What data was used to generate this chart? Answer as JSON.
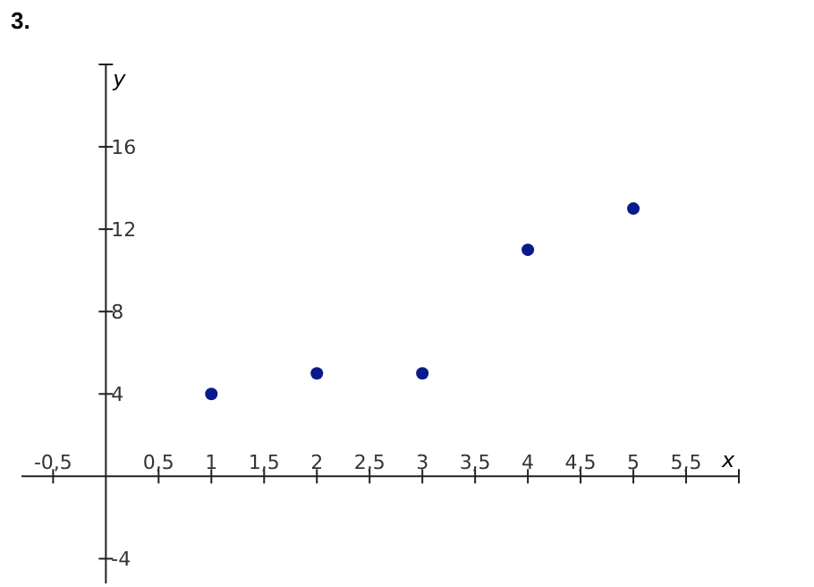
{
  "chart_data": {
    "type": "scatter",
    "title": "3.",
    "xlabel": "x",
    "ylabel": "y",
    "x": [
      1,
      2,
      3,
      4,
      5
    ],
    "series": [
      {
        "color": "#0a1a8c",
        "values": [
          4,
          5,
          5,
          11,
          13
        ]
      }
    ],
    "marker": "circle",
    "grid": false,
    "xlim": [
      -0.8,
      6
    ],
    "ylim": [
      -5.2,
      20
    ],
    "xticks": [
      {
        "value": -0.5,
        "label": "-0,5"
      },
      {
        "value": 0.5,
        "label": "0,5"
      },
      1,
      {
        "value": 1.5,
        "label": "1,5"
      },
      2,
      {
        "value": 2.5,
        "label": "2,5"
      },
      3,
      {
        "value": 3.5,
        "label": "3,5"
      },
      4,
      {
        "value": 4.5,
        "label": "4,5"
      },
      5,
      {
        "value": 5.5,
        "label": "5,5"
      }
    ],
    "yticks": [
      -4,
      4,
      8,
      12,
      16
    ]
  }
}
